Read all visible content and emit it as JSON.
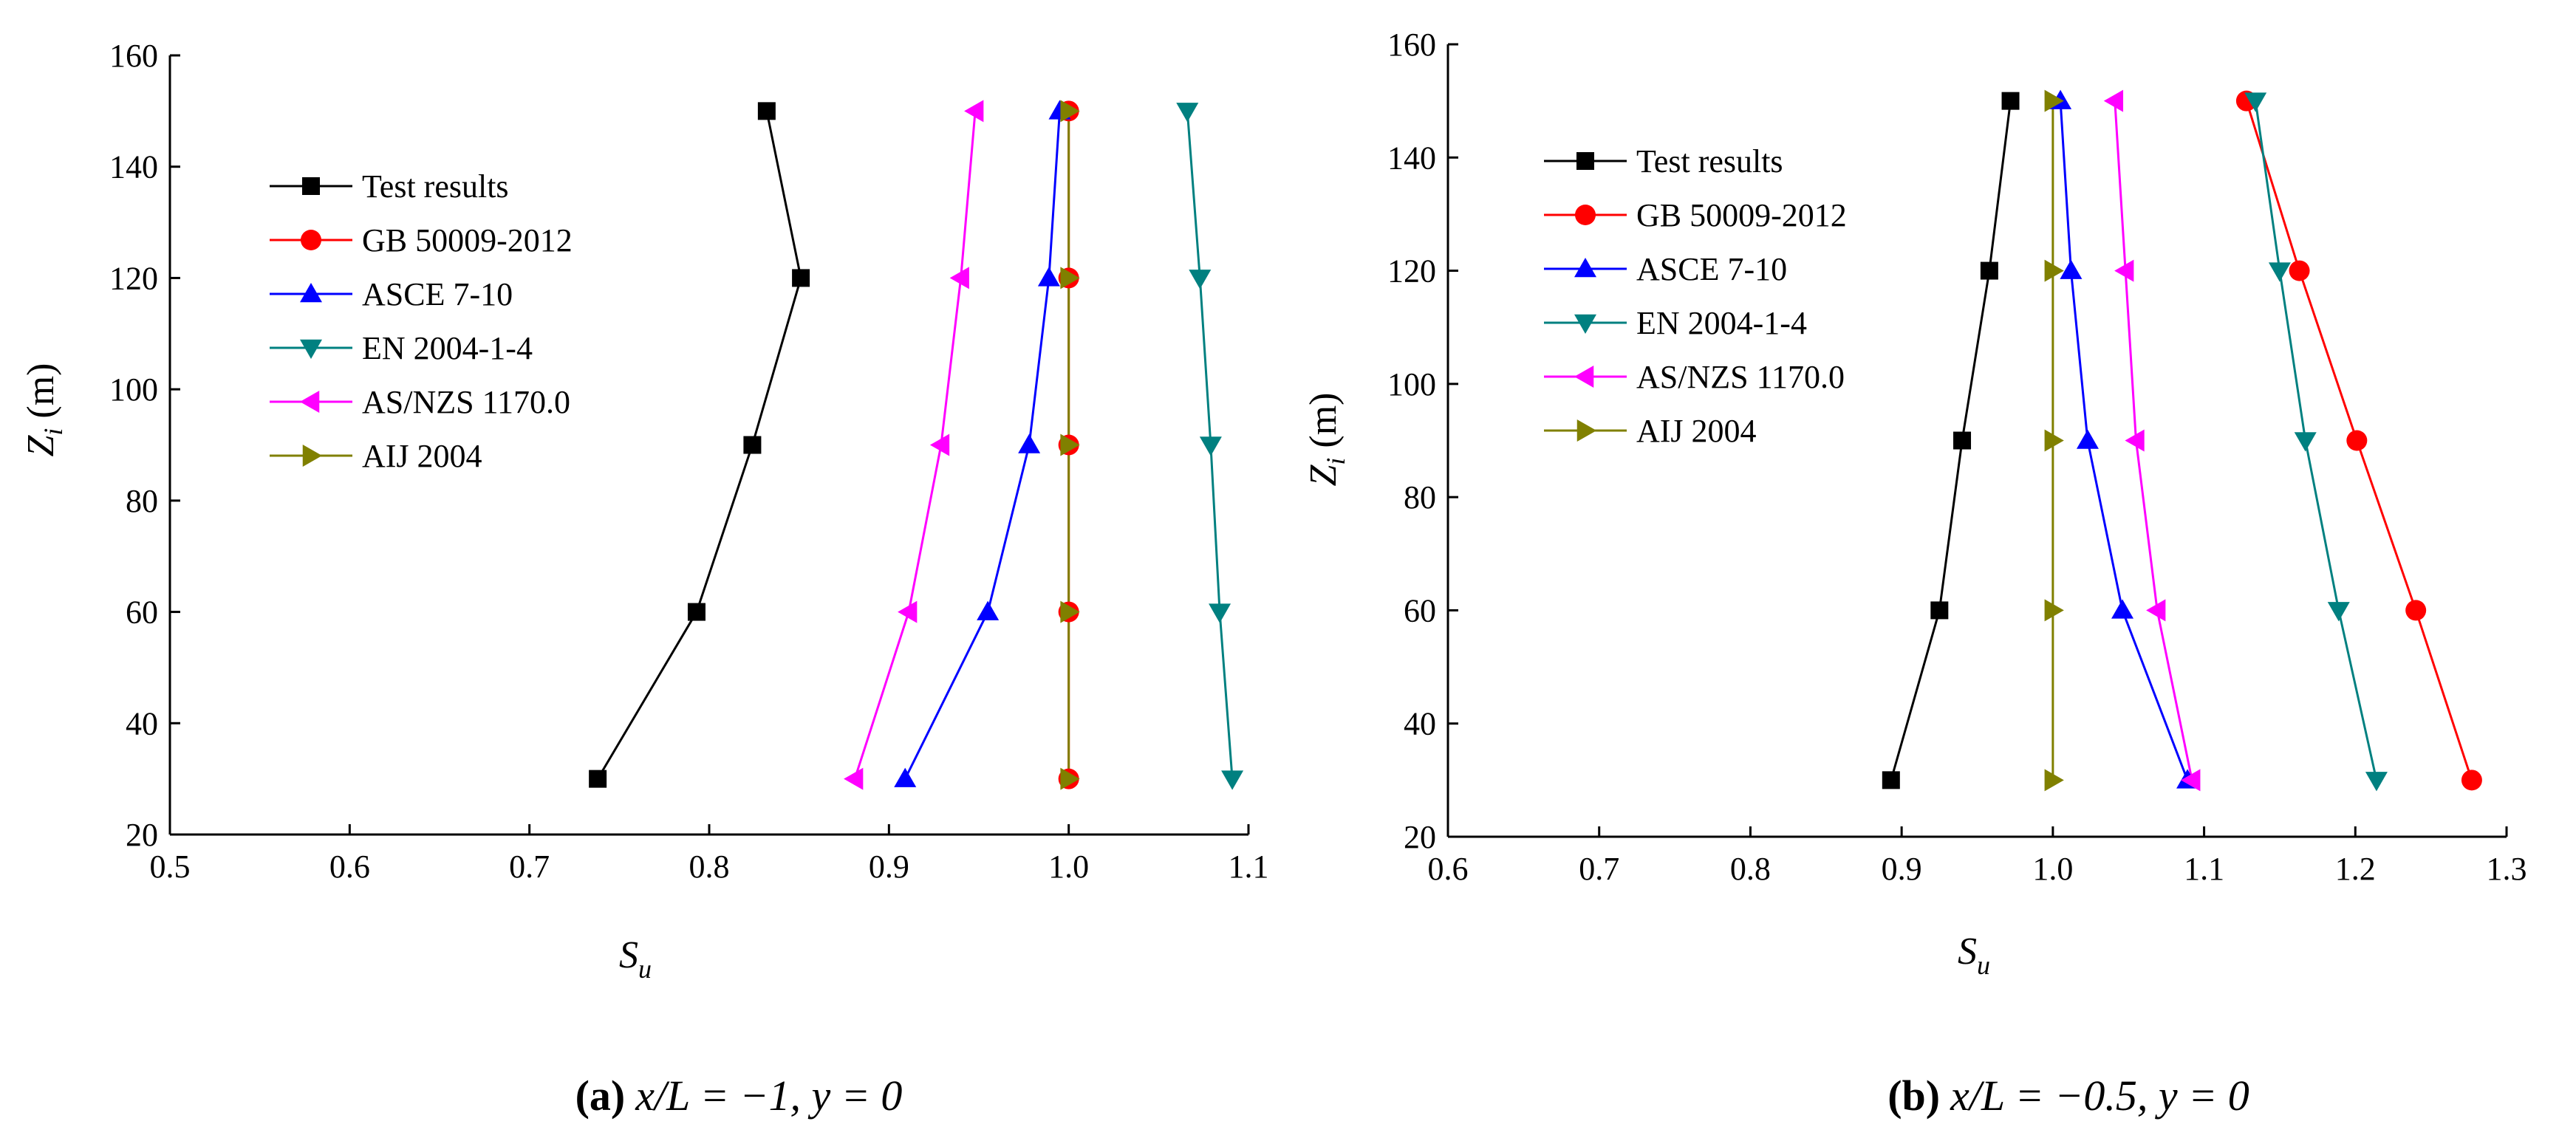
{
  "chart_data": [
    {
      "type": "line",
      "panel": "a",
      "caption": {
        "label": "(a)",
        "text": "x/L = −1, y = 0"
      },
      "xlabel": "S",
      "xlabel_sub": "u",
      "ylabel": "Z",
      "ylabel_sub": "i",
      "ylabel_unit": " (m)",
      "xlim": [
        0.5,
        1.1
      ],
      "ylim": [
        20,
        160
      ],
      "xticks": [
        0.5,
        0.6,
        0.7,
        0.8,
        0.9,
        1.0,
        1.1
      ],
      "yticks": [
        20,
        40,
        60,
        80,
        100,
        120,
        140,
        160
      ],
      "xtick_labels": [
        "0.5",
        "0.6",
        "0.7",
        "0.8",
        "0.9",
        "1.0",
        "1.1"
      ],
      "ytick_labels": [
        "20",
        "40",
        "60",
        "80",
        "100",
        "120",
        "140",
        "160"
      ],
      "y": [
        30,
        60,
        90,
        120,
        150
      ],
      "series": [
        {
          "name": "Test results",
          "marker": "square",
          "color": "#000000",
          "values": [
            0.738,
            0.793,
            0.824,
            0.851,
            0.832
          ]
        },
        {
          "name": "GB 50009-2012",
          "marker": "circle",
          "color": "#ff0000",
          "values": [
            1.0,
            1.0,
            1.0,
            1.0,
            1.0
          ]
        },
        {
          "name": "ASCE 7-10",
          "marker": "triangle-up",
          "color": "#0000ff",
          "values": [
            0.909,
            0.955,
            0.978,
            0.989,
            0.995
          ]
        },
        {
          "name": "EN 2004-1-4",
          "marker": "triangle-down",
          "color": "#008080",
          "values": [
            1.091,
            1.084,
            1.079,
            1.073,
            1.066
          ]
        },
        {
          "name": "AS/NZS 1170.0",
          "marker": "triangle-left",
          "color": "#ff00ff",
          "values": [
            0.881,
            0.911,
            0.929,
            0.94,
            0.948
          ]
        },
        {
          "name": "AIJ 2004",
          "marker": "triangle-right",
          "color": "#808000",
          "values": [
            1.0,
            1.0,
            1.0,
            1.0,
            1.0
          ]
        }
      ]
    },
    {
      "type": "line",
      "panel": "b",
      "caption": {
        "label": "(b)",
        "text": "x/L = −0.5, y = 0"
      },
      "xlabel": "S",
      "xlabel_sub": "u",
      "ylabel": "Z",
      "ylabel_sub": "i",
      "ylabel_unit": " (m)",
      "xlim": [
        0.6,
        1.3
      ],
      "ylim": [
        20,
        160
      ],
      "xticks": [
        0.6,
        0.7,
        0.8,
        0.9,
        1.0,
        1.1,
        1.2,
        1.3
      ],
      "yticks": [
        20,
        40,
        60,
        80,
        100,
        120,
        140,
        160
      ],
      "xtick_labels": [
        "0.6",
        "0.7",
        "0.8",
        "0.9",
        "1.0",
        "1.1",
        "1.2",
        "1.3"
      ],
      "ytick_labels": [
        "20",
        "40",
        "60",
        "80",
        "100",
        "120",
        "140",
        "160"
      ],
      "y": [
        30,
        60,
        90,
        120,
        150
      ],
      "series": [
        {
          "name": "Test results",
          "marker": "square",
          "color": "#000000",
          "values": [
            0.893,
            0.925,
            0.94,
            0.958,
            0.972
          ]
        },
        {
          "name": "GB 50009-2012",
          "marker": "circle",
          "color": "#ff0000",
          "values": [
            1.277,
            1.24,
            1.201,
            1.163,
            1.128
          ]
        },
        {
          "name": "ASCE 7-10",
          "marker": "triangle-up",
          "color": "#0000ff",
          "values": [
            1.089,
            1.046,
            1.023,
            1.012,
            1.005
          ]
        },
        {
          "name": "EN 2004-1-4",
          "marker": "triangle-down",
          "color": "#008080",
          "values": [
            1.214,
            1.189,
            1.167,
            1.15,
            1.134
          ]
        },
        {
          "name": "AS/NZS 1170.0",
          "marker": "triangle-left",
          "color": "#ff00ff",
          "values": [
            1.092,
            1.069,
            1.055,
            1.048,
            1.041
          ]
        },
        {
          "name": "AIJ 2004",
          "marker": "triangle-right",
          "color": "#808000",
          "values": [
            1.0,
            1.0,
            1.0,
            1.0,
            1.0
          ]
        }
      ]
    }
  ]
}
